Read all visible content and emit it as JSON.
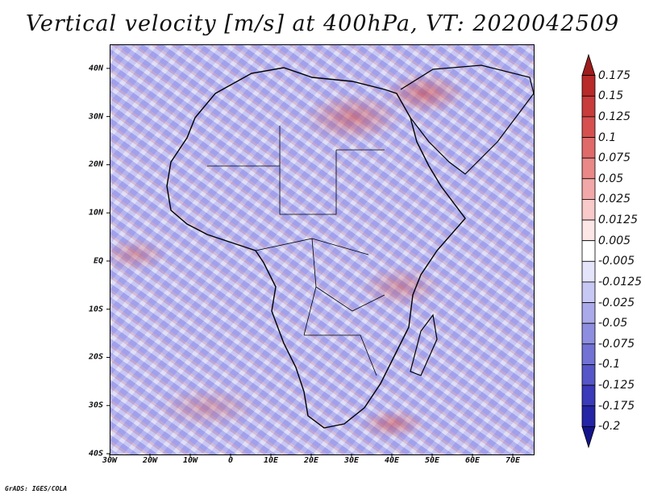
{
  "title": "Vertical velocity [m/s] at 400hPa, VT: 2020042509",
  "map": {
    "lat_labels": [
      "40N",
      "30N",
      "20N",
      "10N",
      "EQ",
      "10S",
      "20S",
      "30S",
      "40S"
    ],
    "lon_labels": [
      "30W",
      "20W",
      "10W",
      "0",
      "10E",
      "20E",
      "30E",
      "40E",
      "50E",
      "60E",
      "70E"
    ],
    "lat_values": [
      40,
      30,
      20,
      10,
      0,
      -10,
      -20,
      -30,
      -40
    ],
    "lon_values": [
      -30,
      -20,
      -10,
      0,
      10,
      20,
      30,
      40,
      50,
      60,
      70
    ],
    "lat_range": [
      -40,
      45
    ],
    "lon_range": [
      -30,
      75
    ],
    "field": "vertical velocity",
    "level": "400hPa",
    "valid_time": "2020042509"
  },
  "colorbar": {
    "labels": [
      "0.175",
      "0.15",
      "0.125",
      "0.1",
      "0.075",
      "0.05",
      "0.025",
      "0.0125",
      "0.005",
      "-0.005",
      "-0.0125",
      "-0.025",
      "-0.05",
      "-0.075",
      "-0.1",
      "-0.125",
      "-0.175",
      "-0.2"
    ],
    "colors": [
      "#9e1c1c",
      "#b92a2a",
      "#c83c3c",
      "#d65050",
      "#e06a6a",
      "#ea8888",
      "#f2a8a8",
      "#f8caca",
      "#fde6e6",
      "#ffffff",
      "#e4e4fb",
      "#c8c8f4",
      "#aaaaea",
      "#8e8ee0",
      "#7272d4",
      "#5656c8",
      "#3a3aba",
      "#2424a6",
      "#14148a"
    ]
  },
  "credit": "GrADS: IGES/COLA"
}
